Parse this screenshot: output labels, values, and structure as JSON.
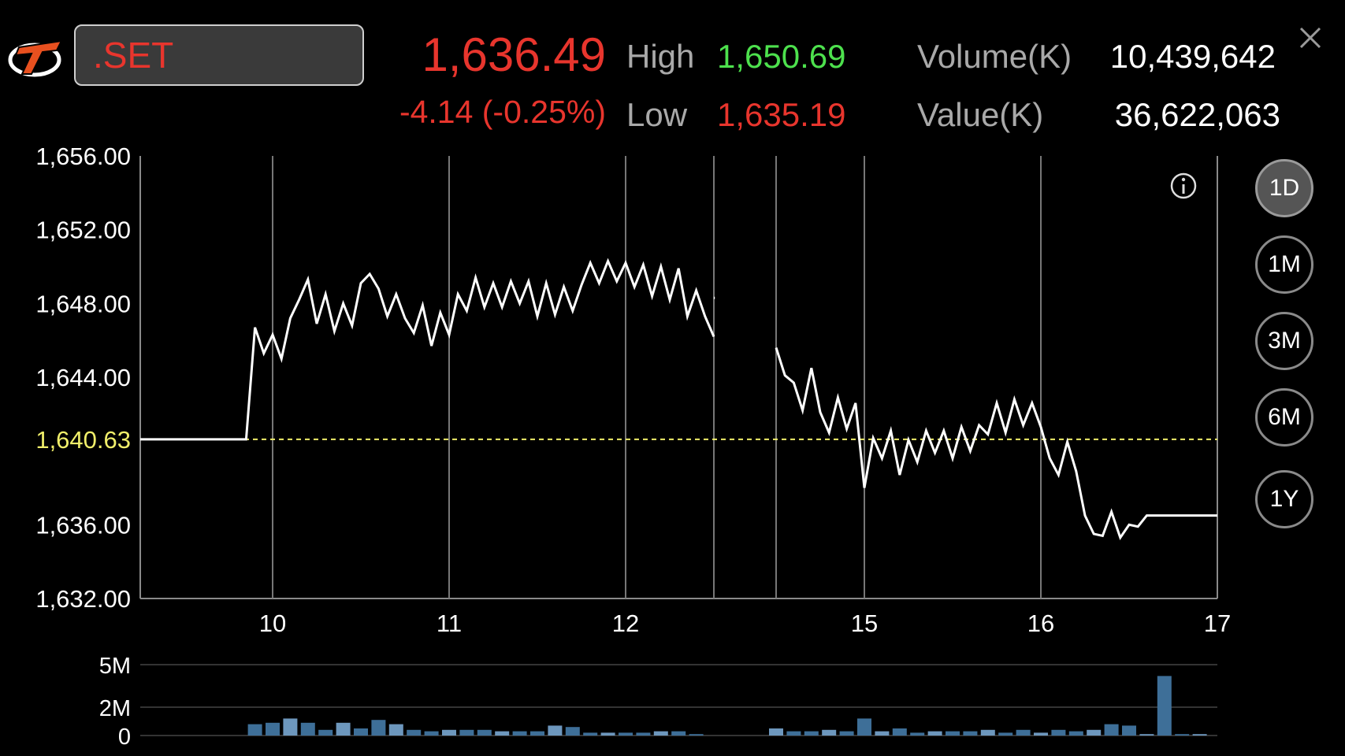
{
  "header": {
    "symbol": ".SET",
    "price": "1,636.49",
    "change": "-4.14 (-0.25%)",
    "high_label": "High",
    "high_value": "1,650.69",
    "low_label": "Low",
    "low_value": "1,635.19",
    "volume_label": "Volume(K)",
    "volume_value": "10,439,642",
    "value_label": "Value(K)",
    "value_value": "36,622,063"
  },
  "colors": {
    "down": "#e8352d",
    "up": "#4de14d",
    "reference": "#f0ee6a",
    "volume_bar": "#3e6f98",
    "volume_bar_light": "#6d97bd"
  },
  "icons": [
    "logo",
    "close-icon",
    "info-icon"
  ],
  "periods": [
    {
      "label": "1D",
      "active": true
    },
    {
      "label": "1M",
      "active": false
    },
    {
      "label": "3M",
      "active": false
    },
    {
      "label": "6M",
      "active": false
    },
    {
      "label": "1Y",
      "active": false
    }
  ],
  "chart_data": {
    "type": "line",
    "y_ticks": [
      "1,656.00",
      "1,652.00",
      "1,648.00",
      "1,644.00",
      "1,636.00",
      "1,632.00"
    ],
    "ylim": [
      1632,
      1656
    ],
    "reference": {
      "value": 1640.63,
      "label": "1,640.63"
    },
    "x_labels": [
      "10",
      "11",
      "12",
      "15",
      "16",
      "17"
    ],
    "grid": true,
    "segments": [
      {
        "x": [
          9.25,
          9.85,
          9.9,
          9.95,
          10.0,
          10.05,
          10.1,
          10.15,
          10.2,
          10.25,
          10.3,
          10.35,
          10.4,
          10.45,
          10.5,
          10.55,
          10.6,
          10.65,
          10.7,
          10.75,
          10.8,
          10.85,
          10.9,
          10.95,
          11.0,
          11.05,
          11.1,
          11.15,
          11.2,
          11.25,
          11.3,
          11.35,
          11.4,
          11.45,
          11.5,
          11.55,
          11.6,
          11.65,
          11.7,
          11.75,
          11.8,
          11.85,
          11.9,
          11.95,
          12.0,
          12.05,
          12.1,
          12.15,
          12.2,
          12.25,
          12.3,
          12.35,
          12.4,
          12.45,
          12.5
        ],
        "y": [
          1640.63,
          1640.63,
          1646.7,
          1645.3,
          1646.3,
          1645.0,
          1647.2,
          1648.2,
          1649.3,
          1646.9,
          1648.5,
          1646.5,
          1648.0,
          1646.8,
          1649.1,
          1649.6,
          1648.8,
          1647.3,
          1648.5,
          1647.2,
          1646.4,
          1647.9,
          1645.7,
          1647.5,
          1646.3,
          1648.5,
          1647.6,
          1649.4,
          1647.8,
          1649.1,
          1647.8,
          1649.2,
          1648.0,
          1649.2,
          1647.3,
          1649.1,
          1647.4,
          1648.9,
          1647.6,
          1649.0,
          1650.2,
          1649.1,
          1650.3,
          1649.2,
          1650.2,
          1648.9,
          1650.1,
          1648.4,
          1650.0,
          1648.2,
          1649.9,
          1647.3,
          1648.7,
          1647.3,
          1646.2
        ]
      },
      {
        "x": [
          12.5,
          12.53
        ],
        "y": [
          1648.3,
          1648.3
        ]
      },
      {
        "x": [
          14.5,
          14.55,
          14.6,
          14.65,
          14.7,
          14.75,
          14.8,
          14.85,
          14.9,
          14.95,
          15.0,
          15.05,
          15.1,
          15.15,
          15.2,
          15.25,
          15.3,
          15.35,
          15.4,
          15.45,
          15.5,
          15.55,
          15.6,
          15.65,
          15.7,
          15.75,
          15.8,
          15.85,
          15.9,
          15.95,
          16.0,
          16.05,
          16.1,
          16.15,
          16.2,
          16.25,
          16.3,
          16.35,
          16.4,
          16.45,
          16.5,
          16.55,
          16.6,
          16.65,
          16.7,
          16.75,
          17.0
        ],
        "y": [
          1645.6,
          1644.1,
          1643.7,
          1642.2,
          1644.5,
          1642.1,
          1641.0,
          1642.9,
          1641.2,
          1642.6,
          1638.0,
          1640.7,
          1639.6,
          1641.1,
          1638.7,
          1640.6,
          1639.4,
          1641.1,
          1639.9,
          1641.1,
          1639.6,
          1641.3,
          1640.0,
          1641.4,
          1640.9,
          1642.6,
          1641.0,
          1642.8,
          1641.4,
          1642.6,
          1641.3,
          1639.6,
          1638.7,
          1640.5,
          1638.9,
          1636.5,
          1635.5,
          1635.4,
          1636.7,
          1635.3,
          1636.0,
          1635.9,
          1636.5,
          1636.5,
          1636.5,
          1636.5,
          1636.5
        ]
      }
    ],
    "session_breaks": [
      12.5,
      14.5
    ],
    "volume": {
      "y_ticks": [
        "5M",
        "2M",
        "0"
      ],
      "ylim": [
        0,
        5
      ],
      "bars": [
        {
          "x": 9.9,
          "v": 0.8
        },
        {
          "x": 10.0,
          "v": 0.9
        },
        {
          "x": 10.1,
          "v": 1.2
        },
        {
          "x": 10.2,
          "v": 0.9
        },
        {
          "x": 10.3,
          "v": 0.4
        },
        {
          "x": 10.4,
          "v": 0.9
        },
        {
          "x": 10.5,
          "v": 0.5
        },
        {
          "x": 10.6,
          "v": 1.1
        },
        {
          "x": 10.7,
          "v": 0.8
        },
        {
          "x": 10.8,
          "v": 0.4
        },
        {
          "x": 10.9,
          "v": 0.3
        },
        {
          "x": 11.0,
          "v": 0.4
        },
        {
          "x": 11.1,
          "v": 0.4
        },
        {
          "x": 11.2,
          "v": 0.4
        },
        {
          "x": 11.3,
          "v": 0.3
        },
        {
          "x": 11.4,
          "v": 0.3
        },
        {
          "x": 11.5,
          "v": 0.3
        },
        {
          "x": 11.6,
          "v": 0.7
        },
        {
          "x": 11.7,
          "v": 0.6
        },
        {
          "x": 11.8,
          "v": 0.2
        },
        {
          "x": 11.9,
          "v": 0.2
        },
        {
          "x": 12.0,
          "v": 0.2
        },
        {
          "x": 12.1,
          "v": 0.2
        },
        {
          "x": 12.2,
          "v": 0.3
        },
        {
          "x": 12.3,
          "v": 0.3
        },
        {
          "x": 12.4,
          "v": 0.1
        },
        {
          "x": 14.5,
          "v": 0.5
        },
        {
          "x": 14.6,
          "v": 0.3
        },
        {
          "x": 14.7,
          "v": 0.3
        },
        {
          "x": 14.8,
          "v": 0.4
        },
        {
          "x": 14.9,
          "v": 0.3
        },
        {
          "x": 15.0,
          "v": 1.2
        },
        {
          "x": 15.1,
          "v": 0.3
        },
        {
          "x": 15.2,
          "v": 0.5
        },
        {
          "x": 15.3,
          "v": 0.2
        },
        {
          "x": 15.4,
          "v": 0.3
        },
        {
          "x": 15.5,
          "v": 0.3
        },
        {
          "x": 15.6,
          "v": 0.3
        },
        {
          "x": 15.7,
          "v": 0.4
        },
        {
          "x": 15.8,
          "v": 0.2
        },
        {
          "x": 15.9,
          "v": 0.4
        },
        {
          "x": 16.0,
          "v": 0.2
        },
        {
          "x": 16.1,
          "v": 0.4
        },
        {
          "x": 16.2,
          "v": 0.3
        },
        {
          "x": 16.3,
          "v": 0.4
        },
        {
          "x": 16.4,
          "v": 0.8
        },
        {
          "x": 16.5,
          "v": 0.7
        },
        {
          "x": 16.6,
          "v": 0.1
        },
        {
          "x": 16.7,
          "v": 4.2
        },
        {
          "x": 16.8,
          "v": 0.1
        },
        {
          "x": 16.9,
          "v": 0.1
        }
      ]
    }
  }
}
